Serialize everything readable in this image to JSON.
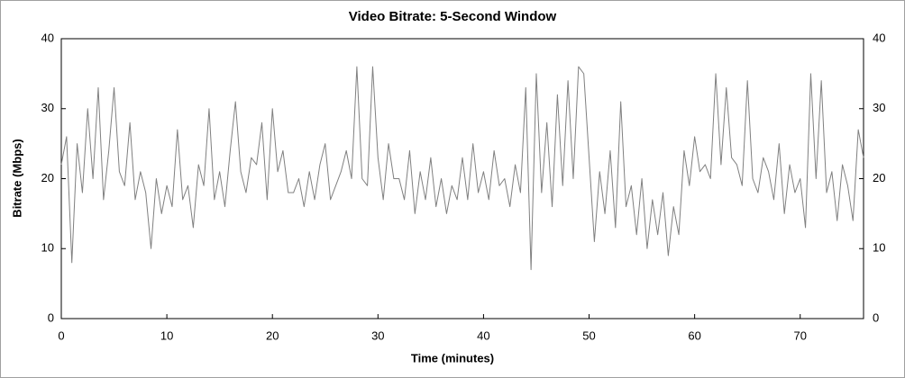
{
  "chart_data": {
    "type": "line",
    "title": "Video Bitrate: 5-Second Window",
    "x_label": "Time (minutes)",
    "y_label": "Bitrate (Mbps)",
    "xlim": [
      0,
      76
    ],
    "xticks": [
      0,
      10,
      20,
      30,
      40,
      50,
      60,
      70
    ],
    "ylim": [
      0,
      40
    ],
    "yticks": [
      0,
      10,
      20,
      30,
      40
    ],
    "y2lim": [
      0,
      40
    ],
    "y2ticks": [
      0,
      10,
      20,
      30,
      40
    ],
    "x": [
      0,
      0.5,
      1,
      1.5,
      2,
      2.5,
      3,
      3.5,
      4,
      4.5,
      5,
      5.5,
      6,
      6.5,
      7,
      7.5,
      8,
      8.5,
      9,
      9.5,
      10,
      10.5,
      11,
      11.5,
      12,
      12.5,
      13,
      13.5,
      14,
      14.5,
      15,
      15.5,
      16,
      16.5,
      17,
      17.5,
      18,
      18.5,
      19,
      19.5,
      20,
      20.5,
      21,
      21.5,
      22,
      22.5,
      23,
      23.5,
      24,
      24.5,
      25,
      25.5,
      26,
      26.5,
      27,
      27.5,
      28,
      28.5,
      29,
      29.5,
      30,
      30.5,
      31,
      31.5,
      32,
      32.5,
      33,
      33.5,
      34,
      34.5,
      35,
      35.5,
      36,
      36.5,
      37,
      37.5,
      38,
      38.5,
      39,
      39.5,
      40,
      40.5,
      41,
      41.5,
      42,
      42.5,
      43,
      43.5,
      44,
      44.5,
      45,
      45.5,
      46,
      46.5,
      47,
      47.5,
      48,
      48.5,
      49,
      49.5,
      50,
      50.5,
      51,
      51.5,
      52,
      52.5,
      53,
      53.5,
      54,
      54.5,
      55,
      55.5,
      56,
      56.5,
      57,
      57.5,
      58,
      58.5,
      59,
      59.5,
      60,
      60.5,
      61,
      61.5,
      62,
      62.5,
      63,
      63.5,
      64,
      64.5,
      65,
      65.5,
      66,
      66.5,
      67,
      67.5,
      68,
      68.5,
      69,
      69.5,
      70,
      70.5,
      71,
      71.5,
      72,
      72.5,
      73,
      73.5,
      74,
      74.5,
      75,
      75.5,
      76
    ],
    "series": [
      {
        "name": "Bitrate",
        "color": "#808080",
        "values": [
          22,
          26,
          8,
          25,
          18,
          30,
          20,
          33,
          17,
          24,
          33,
          21,
          19,
          28,
          17,
          21,
          18,
          10,
          20,
          15,
          19,
          16,
          27,
          17,
          19,
          13,
          22,
          19,
          30,
          17,
          21,
          16,
          24,
          31,
          21,
          18,
          23,
          22,
          28,
          17,
          30,
          21,
          24,
          18,
          18,
          20,
          16,
          21,
          17,
          22,
          25,
          17,
          19,
          21,
          24,
          20,
          36,
          20,
          19,
          36,
          23,
          17,
          25,
          20,
          20,
          17,
          24,
          15,
          21,
          17,
          23,
          16,
          20,
          15,
          19,
          17,
          23,
          17,
          25,
          18,
          21,
          17,
          24,
          19,
          20,
          16,
          22,
          18,
          33,
          7,
          35,
          18,
          28,
          16,
          32,
          19,
          34,
          20,
          36,
          35,
          23,
          11,
          21,
          15,
          24,
          13,
          31,
          16,
          19,
          12,
          20,
          10,
          17,
          12,
          18,
          9,
          16,
          12,
          24,
          19,
          26,
          21,
          22,
          20,
          35,
          22,
          33,
          23,
          22,
          19,
          34,
          20,
          18,
          23,
          21,
          17,
          25,
          15,
          22,
          18,
          20,
          13,
          35,
          20,
          34,
          18,
          21,
          14,
          22,
          19,
          14,
          27,
          23
        ]
      }
    ]
  }
}
